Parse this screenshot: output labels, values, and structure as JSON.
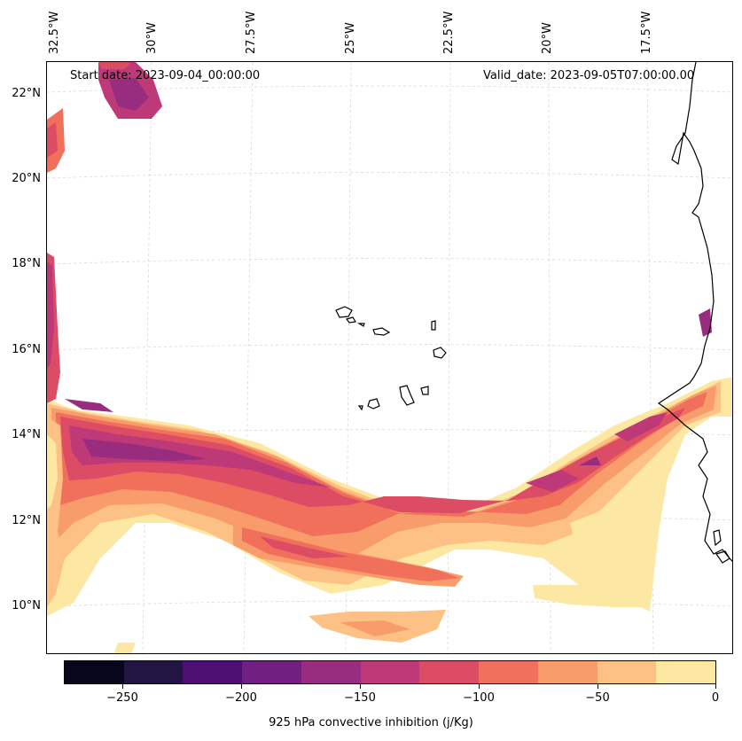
{
  "map": {
    "start_date": "Start date: 2023-09-04_00:00:00",
    "valid_date": "Valid_date: 2023-09-05T07:00:00.00",
    "lon_labels": [
      "32.5°W",
      "30°W",
      "27.5°W",
      "25°W",
      "22.5°W",
      "20°W",
      "17.5°W"
    ],
    "lat_labels": [
      "22°N",
      "20°N",
      "18°N",
      "16°N",
      "14°N",
      "12°N",
      "10°N"
    ],
    "field_colors": {
      "cin_0_25": "#fde8a3",
      "cin_25_50": "#fdc185",
      "cin_50_75": "#f99c6b",
      "cin_75_100": "#f0705b",
      "cin_100_125": "#dd4c65",
      "cin_125_150": "#bd3978",
      "cin_150_175": "#982d80",
      "cin_175_200": "#711f81"
    },
    "coastline_color": "#000000",
    "gridline_color": "#d8d8d8"
  },
  "colorbar": {
    "label": "925 hPa convective inhibition (j/Kg)",
    "ticks": [
      "−250",
      "−200",
      "−150",
      "−100",
      "−50",
      "0"
    ],
    "colors": [
      "#07061a",
      "#221443",
      "#4e0f73",
      "#711f81",
      "#982d80",
      "#bd3978",
      "#dd4c65",
      "#f0705b",
      "#f99c6b",
      "#fdc185",
      "#fde8a3"
    ]
  }
}
